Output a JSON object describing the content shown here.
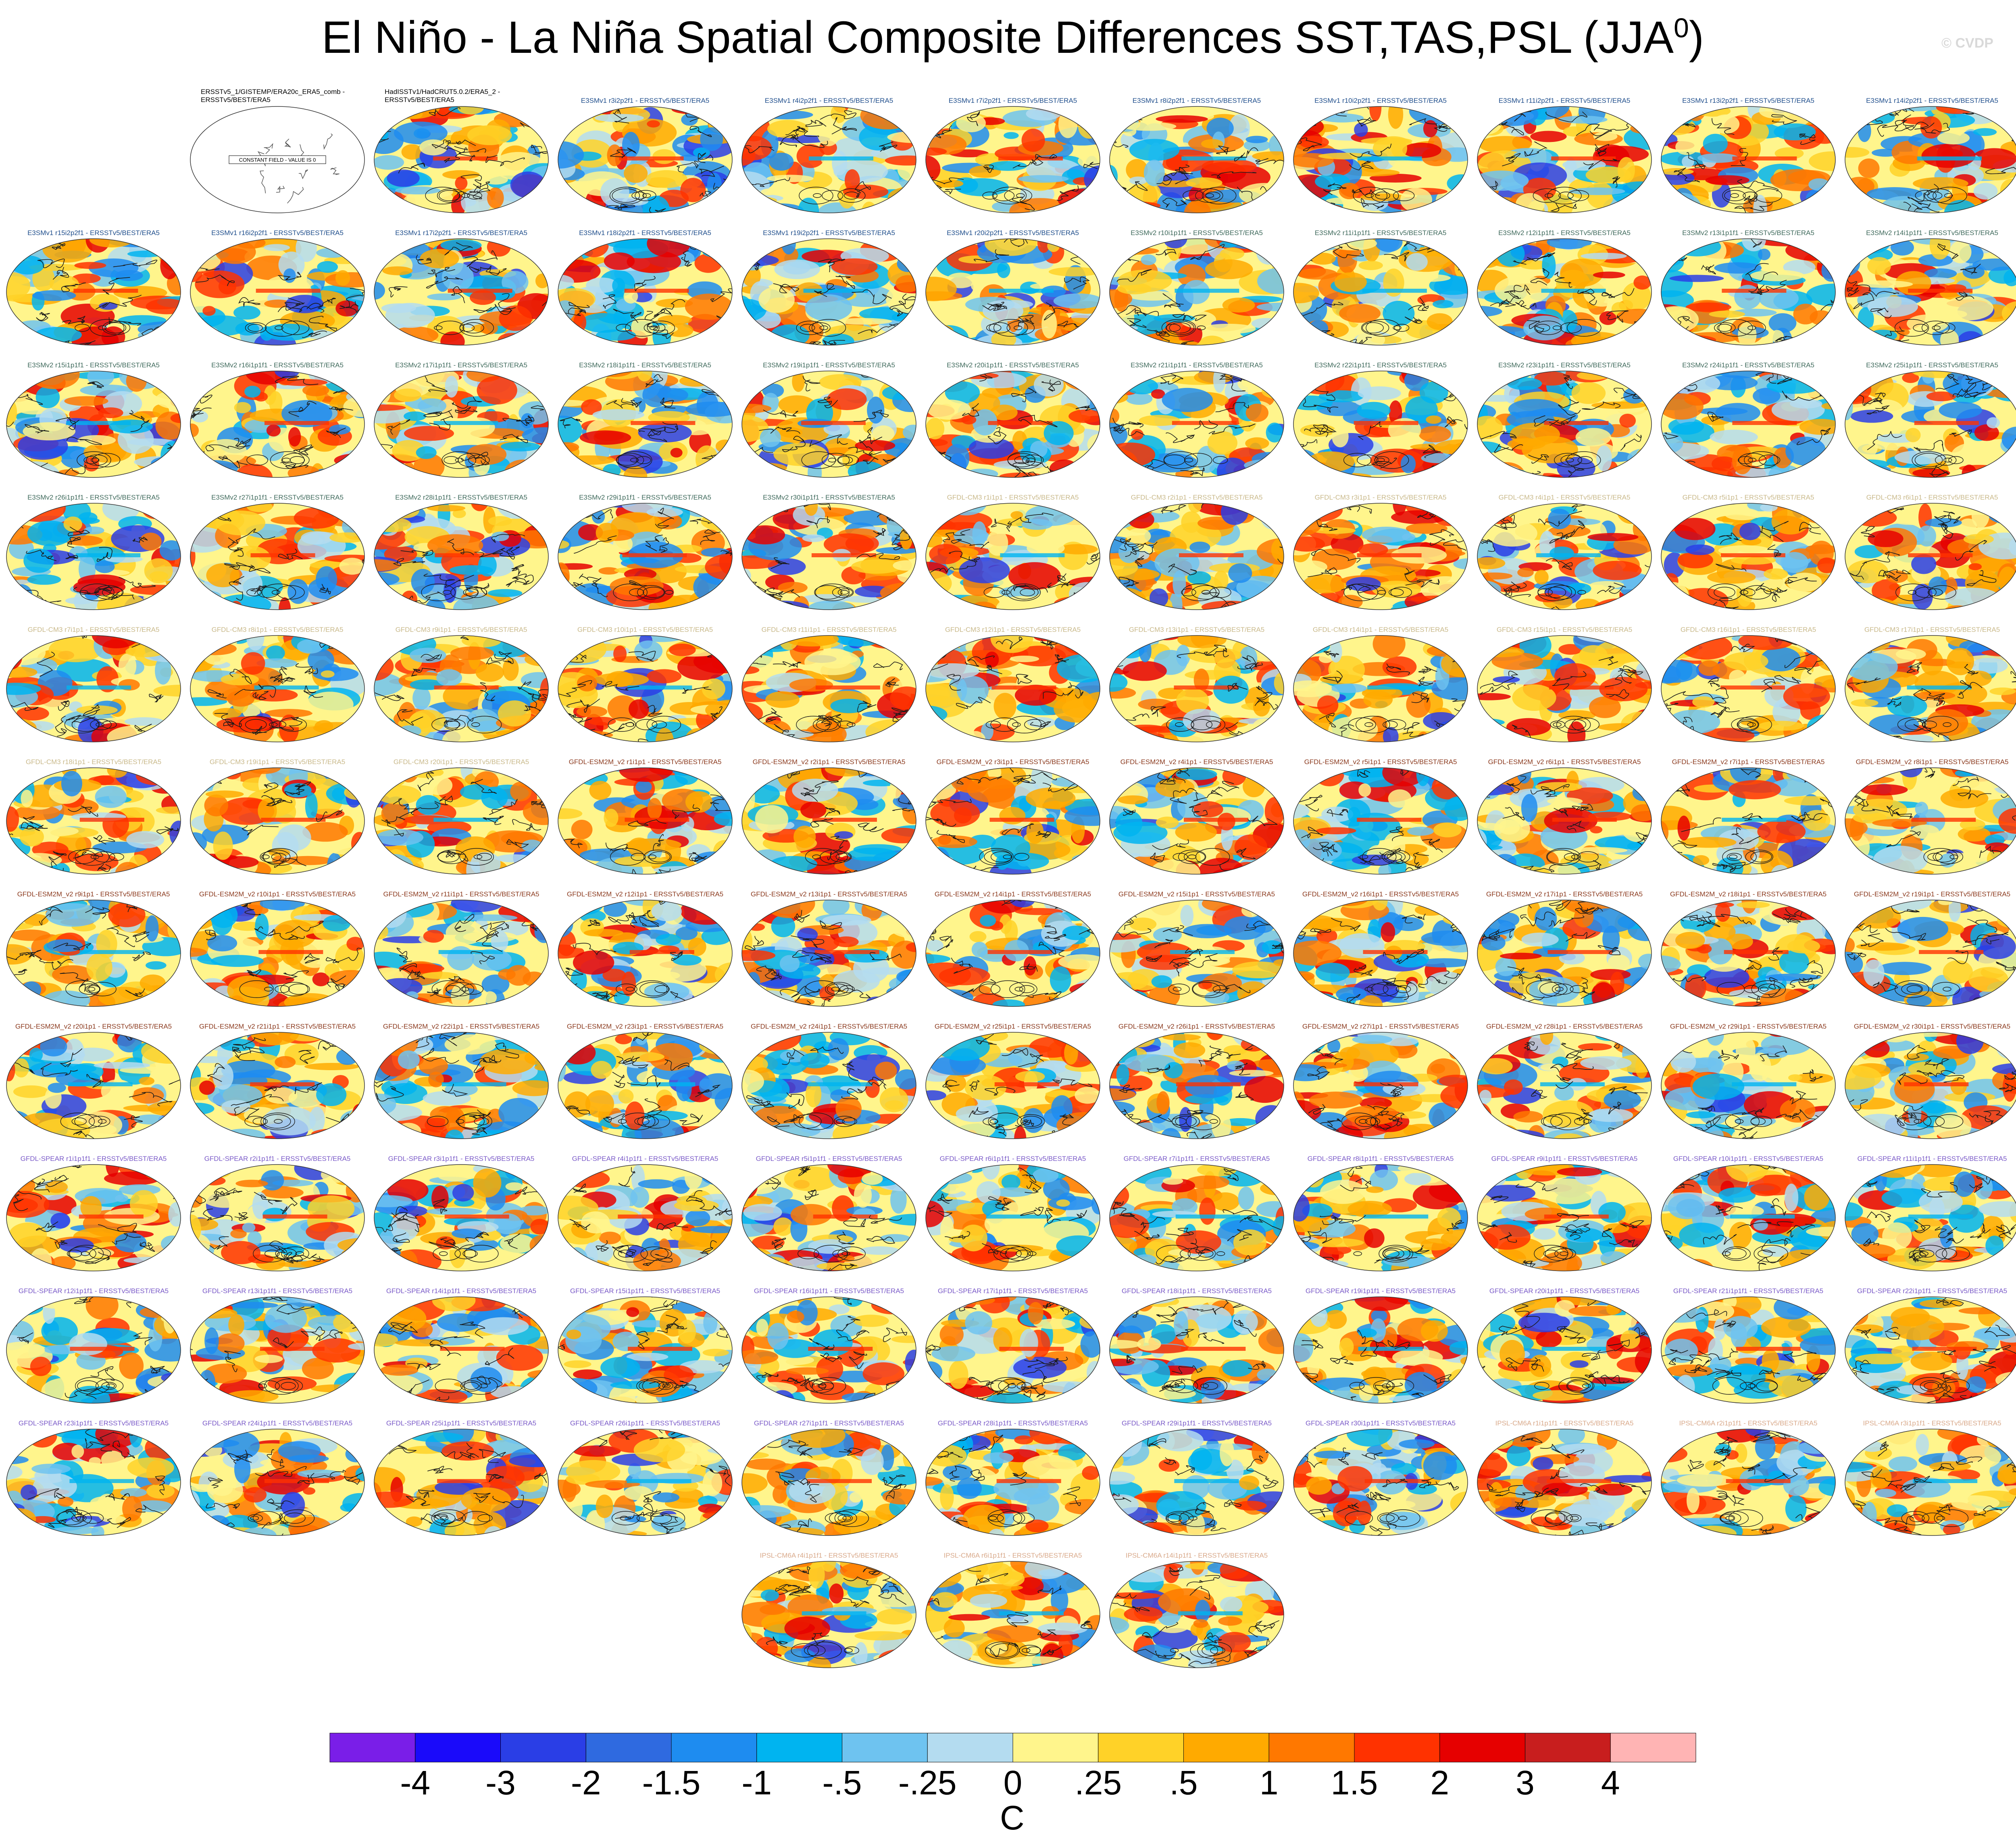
{
  "title": {
    "main": "El Niño - La Niña Spatial Composite Differences SST,TAS,PSL (JJA",
    "sup": "0",
    ")": ")"
  },
  "watermark": "© CVDP",
  "chart_data": {
    "type": "heatmap",
    "title": "El Niño - La Niña Spatial Composite Differences SST,TAS,PSL (JJA0)",
    "description_units": "C",
    "colorbar": {
      "units": "C",
      "levels": [
        "-4",
        "-3",
        "-2",
        "-1.5",
        "-1",
        "-.5",
        "-.25",
        "0",
        ".25",
        ".5",
        "1",
        "1.5",
        "2",
        "3",
        "4"
      ],
      "colors": [
        "#7a1ee8",
        "#1a0afa",
        "#2a3ee6",
        "#2f6ae0",
        "#1e8cf0",
        "#00b4f0",
        "#6ec3f0",
        "#b4dcf0",
        "#fff58c",
        "#ffd228",
        "#ffaa00",
        "#ff7800",
        "#ff3200",
        "#e60000",
        "#c81e1e",
        "#ffb4b4"
      ]
    },
    "panels": [
      {
        "label": "ERSSTv5_1/GISTEMP/ERA20c_ERA5_comb - ERSSTv5/BEST/ERA5",
        "group": "obs",
        "note": "CONSTANT FIELD - VALUE IS 0"
      },
      {
        "label": "HadISSTv1/HadCRUT5.0.2/ERA5_2 - ERSSTv5/BEST/ERA5",
        "group": "obs"
      },
      {
        "label": "E3SMv1 r3i2p2f1 - ERSSTv5/BEST/ERA5",
        "group": "e3sm1"
      },
      {
        "label": "E3SMv1 r4i2p2f1 - ERSSTv5/BEST/ERA5",
        "group": "e3sm1"
      },
      {
        "label": "E3SMv1 r7i2p2f1 - ERSSTv5/BEST/ERA5",
        "group": "e3sm1"
      },
      {
        "label": "E3SMv1 r8i2p2f1 - ERSSTv5/BEST/ERA5",
        "group": "e3sm1"
      },
      {
        "label": "E3SMv1 r10i2p2f1 - ERSSTv5/BEST/ERA5",
        "group": "e3sm1"
      },
      {
        "label": "E3SMv1 r11i2p2f1 - ERSSTv5/BEST/ERA5",
        "group": "e3sm1"
      },
      {
        "label": "E3SMv1 r13i2p2f1 - ERSSTv5/BEST/ERA5",
        "group": "e3sm1"
      },
      {
        "label": "E3SMv1 r14i2p2f1 - ERSSTv5/BEST/ERA5",
        "group": "e3sm1"
      },
      {
        "label": "E3SMv1 r15i2p2f1 - ERSSTv5/BEST/ERA5",
        "group": "e3sm1"
      },
      {
        "label": "E3SMv1 r16i2p2f1 - ERSSTv5/BEST/ERA5",
        "group": "e3sm1"
      },
      {
        "label": "E3SMv1 r17i2p2f1 - ERSSTv5/BEST/ERA5",
        "group": "e3sm1"
      },
      {
        "label": "E3SMv1 r18i2p2f1 - ERSSTv5/BEST/ERA5",
        "group": "e3sm1"
      },
      {
        "label": "E3SMv1 r19i2p2f1 - ERSSTv5/BEST/ERA5",
        "group": "e3sm1"
      },
      {
        "label": "E3SMv1 r20i2p2f1 - ERSSTv5/BEST/ERA5",
        "group": "e3sm1"
      },
      {
        "label": "E3SMv2 r10i1p1f1 - ERSSTv5/BEST/ERA5",
        "group": "e3sm2"
      },
      {
        "label": "E3SMv2 r11i1p1f1 - ERSSTv5/BEST/ERA5",
        "group": "e3sm2"
      },
      {
        "label": "E3SMv2 r12i1p1f1 - ERSSTv5/BEST/ERA5",
        "group": "e3sm2"
      },
      {
        "label": "E3SMv2 r13i1p1f1 - ERSSTv5/BEST/ERA5",
        "group": "e3sm2"
      },
      {
        "label": "E3SMv2 r14i1p1f1 - ERSSTv5/BEST/ERA5",
        "group": "e3sm2"
      },
      {
        "label": "E3SMv2 r15i1p1f1 - ERSSTv5/BEST/ERA5",
        "group": "e3sm2"
      },
      {
        "label": "E3SMv2 r16i1p1f1 - ERSSTv5/BEST/ERA5",
        "group": "e3sm2"
      },
      {
        "label": "E3SMv2 r17i1p1f1 - ERSSTv5/BEST/ERA5",
        "group": "e3sm2"
      },
      {
        "label": "E3SMv2 r18i1p1f1 - ERSSTv5/BEST/ERA5",
        "group": "e3sm2"
      },
      {
        "label": "E3SMv2 r19i1p1f1 - ERSSTv5/BEST/ERA5",
        "group": "e3sm2"
      },
      {
        "label": "E3SMv2 r20i1p1f1 - ERSSTv5/BEST/ERA5",
        "group": "e3sm2"
      },
      {
        "label": "E3SMv2 r21i1p1f1 - ERSSTv5/BEST/ERA5",
        "group": "e3sm2"
      },
      {
        "label": "E3SMv2 r22i1p1f1 - ERSSTv5/BEST/ERA5",
        "group": "e3sm2"
      },
      {
        "label": "E3SMv2 r23i1p1f1 - ERSSTv5/BEST/ERA5",
        "group": "e3sm2"
      },
      {
        "label": "E3SMv2 r24i1p1f1 - ERSSTv5/BEST/ERA5",
        "group": "e3sm2"
      },
      {
        "label": "E3SMv2 r25i1p1f1 - ERSSTv5/BEST/ERA5",
        "group": "e3sm2"
      },
      {
        "label": "E3SMv2 r26i1p1f1 - ERSSTv5/BEST/ERA5",
        "group": "e3sm2"
      },
      {
        "label": "E3SMv2 r27i1p1f1 - ERSSTv5/BEST/ERA5",
        "group": "e3sm2"
      },
      {
        "label": "E3SMv2 r28i1p1f1 - ERSSTv5/BEST/ERA5",
        "group": "e3sm2"
      },
      {
        "label": "E3SMv2 r29i1p1f1 - ERSSTv5/BEST/ERA5",
        "group": "e3sm2"
      },
      {
        "label": "E3SMv2 r30i1p1f1 - ERSSTv5/BEST/ERA5",
        "group": "e3sm2"
      },
      {
        "label": "GFDL-CM3 r1i1p1 - ERSSTv5/BEST/ERA5",
        "group": "cm3"
      },
      {
        "label": "GFDL-CM3 r2i1p1 - ERSSTv5/BEST/ERA5",
        "group": "cm3"
      },
      {
        "label": "GFDL-CM3 r3i1p1 - ERSSTv5/BEST/ERA5",
        "group": "cm3"
      },
      {
        "label": "GFDL-CM3 r4i1p1 - ERSSTv5/BEST/ERA5",
        "group": "cm3"
      },
      {
        "label": "GFDL-CM3 r5i1p1 - ERSSTv5/BEST/ERA5",
        "group": "cm3"
      },
      {
        "label": "GFDL-CM3 r6i1p1 - ERSSTv5/BEST/ERA5",
        "group": "cm3"
      },
      {
        "label": "GFDL-CM3 r7i1p1 - ERSSTv5/BEST/ERA5",
        "group": "cm3"
      },
      {
        "label": "GFDL-CM3 r8i1p1 - ERSSTv5/BEST/ERA5",
        "group": "cm3"
      },
      {
        "label": "GFDL-CM3 r9i1p1 - ERSSTv5/BEST/ERA5",
        "group": "cm3"
      },
      {
        "label": "GFDL-CM3 r10i1p1 - ERSSTv5/BEST/ERA5",
        "group": "cm3"
      },
      {
        "label": "GFDL-CM3 r11i1p1 - ERSSTv5/BEST/ERA5",
        "group": "cm3"
      },
      {
        "label": "GFDL-CM3 r12i1p1 - ERSSTv5/BEST/ERA5",
        "group": "cm3"
      },
      {
        "label": "GFDL-CM3 r13i1p1 - ERSSTv5/BEST/ERA5",
        "group": "cm3"
      },
      {
        "label": "GFDL-CM3 r14i1p1 - ERSSTv5/BEST/ERA5",
        "group": "cm3"
      },
      {
        "label": "GFDL-CM3 r15i1p1 - ERSSTv5/BEST/ERA5",
        "group": "cm3"
      },
      {
        "label": "GFDL-CM3 r16i1p1 - ERSSTv5/BEST/ERA5",
        "group": "cm3"
      },
      {
        "label": "GFDL-CM3 r17i1p1 - ERSSTv5/BEST/ERA5",
        "group": "cm3"
      },
      {
        "label": "GFDL-CM3 r18i1p1 - ERSSTv5/BEST/ERA5",
        "group": "cm3"
      },
      {
        "label": "GFDL-CM3 r19i1p1 - ERSSTv5/BEST/ERA5",
        "group": "cm3"
      },
      {
        "label": "GFDL-CM3 r20i1p1 - ERSSTv5/BEST/ERA5",
        "group": "cm3"
      },
      {
        "label": "GFDL-ESM2M_v2 r1i1p1 - ERSSTv5/BEST/ERA5",
        "group": "esm2m"
      },
      {
        "label": "GFDL-ESM2M_v2 r2i1p1 - ERSSTv5/BEST/ERA5",
        "group": "esm2m"
      },
      {
        "label": "GFDL-ESM2M_v2 r3i1p1 - ERSSTv5/BEST/ERA5",
        "group": "esm2m"
      },
      {
        "label": "GFDL-ESM2M_v2 r4i1p1 - ERSSTv5/BEST/ERA5",
        "group": "esm2m"
      },
      {
        "label": "GFDL-ESM2M_v2 r5i1p1 - ERSSTv5/BEST/ERA5",
        "group": "esm2m"
      },
      {
        "label": "GFDL-ESM2M_v2 r6i1p1 - ERSSTv5/BEST/ERA5",
        "group": "esm2m"
      },
      {
        "label": "GFDL-ESM2M_v2 r7i1p1 - ERSSTv5/BEST/ERA5",
        "group": "esm2m"
      },
      {
        "label": "GFDL-ESM2M_v2 r8i1p1 - ERSSTv5/BEST/ERA5",
        "group": "esm2m"
      },
      {
        "label": "GFDL-ESM2M_v2 r9i1p1 - ERSSTv5/BEST/ERA5",
        "group": "esm2m"
      },
      {
        "label": "GFDL-ESM2M_v2 r10i1p1 - ERSSTv5/BEST/ERA5",
        "group": "esm2m"
      },
      {
        "label": "GFDL-ESM2M_v2 r11i1p1 - ERSSTv5/BEST/ERA5",
        "group": "esm2m"
      },
      {
        "label": "GFDL-ESM2M_v2 r12i1p1 - ERSSTv5/BEST/ERA5",
        "group": "esm2m"
      },
      {
        "label": "GFDL-ESM2M_v2 r13i1p1 - ERSSTv5/BEST/ERA5",
        "group": "esm2m"
      },
      {
        "label": "GFDL-ESM2M_v2 r14i1p1 - ERSSTv5/BEST/ERA5",
        "group": "esm2m"
      },
      {
        "label": "GFDL-ESM2M_v2 r15i1p1 - ERSSTv5/BEST/ERA5",
        "group": "esm2m"
      },
      {
        "label": "GFDL-ESM2M_v2 r16i1p1 - ERSSTv5/BEST/ERA5",
        "group": "esm2m"
      },
      {
        "label": "GFDL-ESM2M_v2 r17i1p1 - ERSSTv5/BEST/ERA5",
        "group": "esm2m"
      },
      {
        "label": "GFDL-ESM2M_v2 r18i1p1 - ERSSTv5/BEST/ERA5",
        "group": "esm2m"
      },
      {
        "label": "GFDL-ESM2M_v2 r19i1p1 - ERSSTv5/BEST/ERA5",
        "group": "esm2m"
      },
      {
        "label": "GFDL-ESM2M_v2 r20i1p1 - ERSSTv5/BEST/ERA5",
        "group": "esm2m"
      },
      {
        "label": "GFDL-ESM2M_v2 r21i1p1 - ERSSTv5/BEST/ERA5",
        "group": "esm2m"
      },
      {
        "label": "GFDL-ESM2M_v2 r22i1p1 - ERSSTv5/BEST/ERA5",
        "group": "esm2m"
      },
      {
        "label": "GFDL-ESM2M_v2 r23i1p1 - ERSSTv5/BEST/ERA5",
        "group": "esm2m"
      },
      {
        "label": "GFDL-ESM2M_v2 r24i1p1 - ERSSTv5/BEST/ERA5",
        "group": "esm2m"
      },
      {
        "label": "GFDL-ESM2M_v2 r25i1p1 - ERSSTv5/BEST/ERA5",
        "group": "esm2m"
      },
      {
        "label": "GFDL-ESM2M_v2 r26i1p1 - ERSSTv5/BEST/ERA5",
        "group": "esm2m"
      },
      {
        "label": "GFDL-ESM2M_v2 r27i1p1 - ERSSTv5/BEST/ERA5",
        "group": "esm2m"
      },
      {
        "label": "GFDL-ESM2M_v2 r28i1p1 - ERSSTv5/BEST/ERA5",
        "group": "esm2m"
      },
      {
        "label": "GFDL-ESM2M_v2 r29i1p1 - ERSSTv5/BEST/ERA5",
        "group": "esm2m"
      },
      {
        "label": "GFDL-ESM2M_v2 r30i1p1 - ERSSTv5/BEST/ERA5",
        "group": "esm2m"
      },
      {
        "label": "GFDL-SPEAR r1i1p1f1 - ERSSTv5/BEST/ERA5",
        "group": "spear"
      },
      {
        "label": "GFDL-SPEAR r2i1p1f1 - ERSSTv5/BEST/ERA5",
        "group": "spear"
      },
      {
        "label": "GFDL-SPEAR r3i1p1f1 - ERSSTv5/BEST/ERA5",
        "group": "spear"
      },
      {
        "label": "GFDL-SPEAR r4i1p1f1 - ERSSTv5/BEST/ERA5",
        "group": "spear"
      },
      {
        "label": "GFDL-SPEAR r5i1p1f1 - ERSSTv5/BEST/ERA5",
        "group": "spear"
      },
      {
        "label": "GFDL-SPEAR r6i1p1f1 - ERSSTv5/BEST/ERA5",
        "group": "spear"
      },
      {
        "label": "GFDL-SPEAR r7i1p1f1 - ERSSTv5/BEST/ERA5",
        "group": "spear"
      },
      {
        "label": "GFDL-SPEAR r8i1p1f1 - ERSSTv5/BEST/ERA5",
        "group": "spear"
      },
      {
        "label": "GFDL-SPEAR r9i1p1f1 - ERSSTv5/BEST/ERA5",
        "group": "spear"
      },
      {
        "label": "GFDL-SPEAR r10i1p1f1 - ERSSTv5/BEST/ERA5",
        "group": "spear"
      },
      {
        "label": "GFDL-SPEAR r11i1p1f1 - ERSSTv5/BEST/ERA5",
        "group": "spear"
      },
      {
        "label": "GFDL-SPEAR r12i1p1f1 - ERSSTv5/BEST/ERA5",
        "group": "spear"
      },
      {
        "label": "GFDL-SPEAR r13i1p1f1 - ERSSTv5/BEST/ERA5",
        "group": "spear"
      },
      {
        "label": "GFDL-SPEAR r14i1p1f1 - ERSSTv5/BEST/ERA5",
        "group": "spear"
      },
      {
        "label": "GFDL-SPEAR r15i1p1f1 - ERSSTv5/BEST/ERA5",
        "group": "spear"
      },
      {
        "label": "GFDL-SPEAR r16i1p1f1 - ERSSTv5/BEST/ERA5",
        "group": "spear"
      },
      {
        "label": "GFDL-SPEAR r17i1p1f1 - ERSSTv5/BEST/ERA5",
        "group": "spear"
      },
      {
        "label": "GFDL-SPEAR r18i1p1f1 - ERSSTv5/BEST/ERA5",
        "group": "spear"
      },
      {
        "label": "GFDL-SPEAR r19i1p1f1 - ERSSTv5/BEST/ERA5",
        "group": "spear"
      },
      {
        "label": "GFDL-SPEAR r20i1p1f1 - ERSSTv5/BEST/ERA5",
        "group": "spear"
      },
      {
        "label": "GFDL-SPEAR r21i1p1f1 - ERSSTv5/BEST/ERA5",
        "group": "spear"
      },
      {
        "label": "GFDL-SPEAR r22i1p1f1 - ERSSTv5/BEST/ERA5",
        "group": "spear"
      },
      {
        "label": "GFDL-SPEAR r23i1p1f1 - ERSSTv5/BEST/ERA5",
        "group": "spear"
      },
      {
        "label": "GFDL-SPEAR r24i1p1f1 - ERSSTv5/BEST/ERA5",
        "group": "spear"
      },
      {
        "label": "GFDL-SPEAR r25i1p1f1 - ERSSTv5/BEST/ERA5",
        "group": "spear"
      },
      {
        "label": "GFDL-SPEAR r26i1p1f1 - ERSSTv5/BEST/ERA5",
        "group": "spear"
      },
      {
        "label": "GFDL-SPEAR r27i1p1f1 - ERSSTv5/BEST/ERA5",
        "group": "spear"
      },
      {
        "label": "GFDL-SPEAR r28i1p1f1 - ERSSTv5/BEST/ERA5",
        "group": "spear"
      },
      {
        "label": "GFDL-SPEAR r29i1p1f1 - ERSSTv5/BEST/ERA5",
        "group": "spear"
      },
      {
        "label": "GFDL-SPEAR r30i1p1f1 - ERSSTv5/BEST/ERA5",
        "group": "spear"
      },
      {
        "label": "IPSL-CM6A r1i1p1f1 - ERSSTv5/BEST/ERA5",
        "group": "ipsl"
      },
      {
        "label": "IPSL-CM6A r2i1p1f1 - ERSSTv5/BEST/ERA5",
        "group": "ipsl"
      },
      {
        "label": "IPSL-CM6A r3i1p1f1 - ERSSTv5/BEST/ERA5",
        "group": "ipsl"
      },
      {
        "label": "IPSL-CM6A r4i1p1f1 - ERSSTv5/BEST/ERA5",
        "group": "ipsl"
      },
      {
        "label": "IPSL-CM6A r6i1p1f1 - ERSSTv5/BEST/ERA5",
        "group": "ipsl"
      },
      {
        "label": "IPSL-CM6A r14i1p1f1 - ERSSTv5/BEST/ERA5",
        "group": "ipsl"
      }
    ],
    "group_colors": {
      "obs": "#000000",
      "e3sm1": "#1f4e8c",
      "e3sm2": "#3f6a5c",
      "cm3": "#c9b98a",
      "esm2m": "#8b3a1e",
      "spear": "#7a5ac8",
      "ipsl": "#d9a98a"
    }
  }
}
